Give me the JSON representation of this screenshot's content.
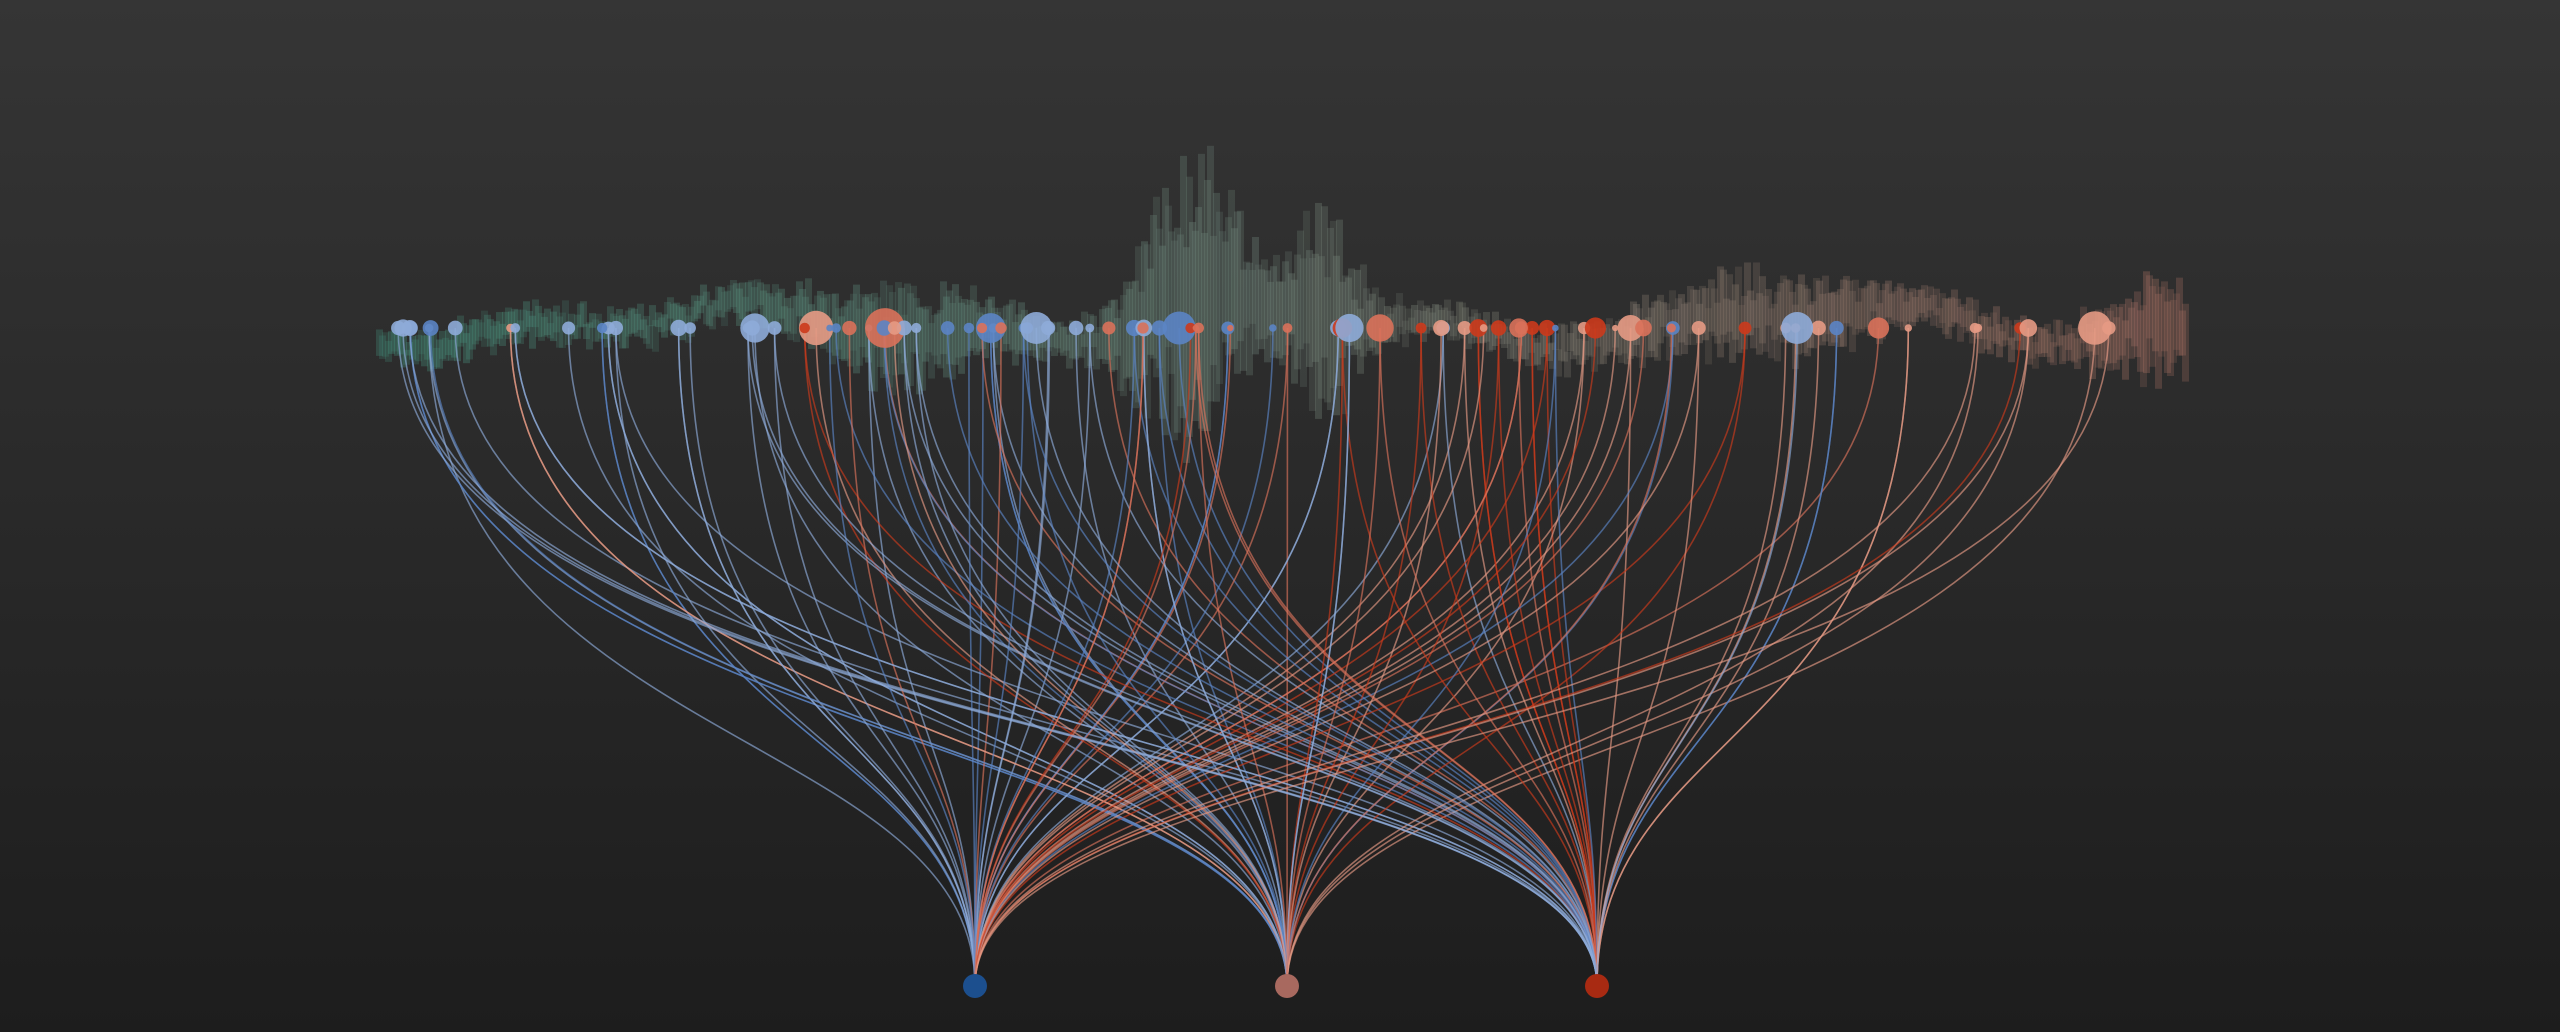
{
  "hubs": [
    {
      "color": "#1c4f8e"
    },
    {
      "color": "#a8695f"
    },
    {
      "color": "#a82a12"
    }
  ]
}
